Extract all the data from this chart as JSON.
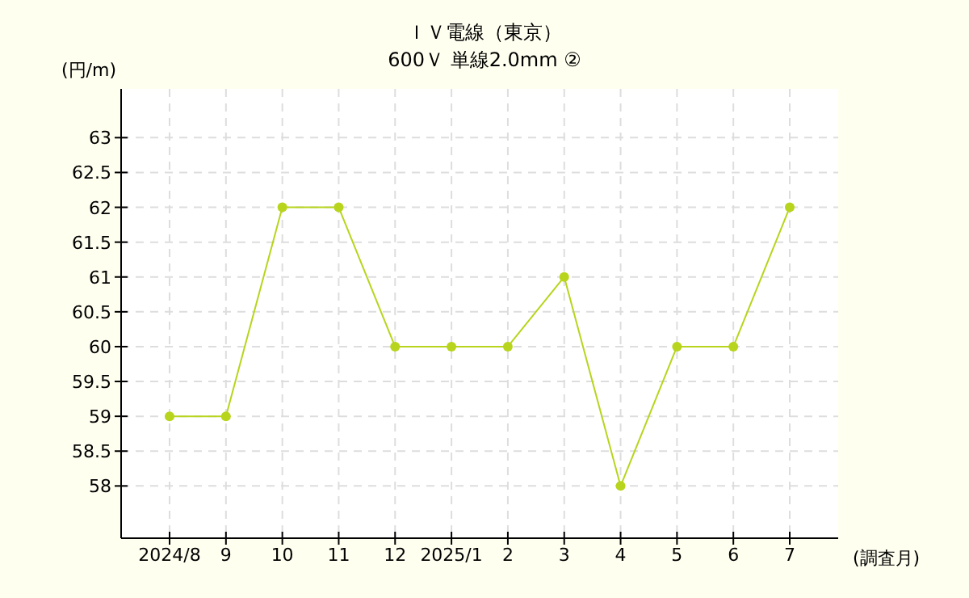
{
  "chart_data": {
    "type": "line",
    "title": "ＩＶ電線（東京）",
    "subtitle": "600Ｖ 単線2.0mm ②",
    "ylabel": "(円/m)",
    "xlabel": "(調査月)",
    "categories": [
      "2024/8",
      "9",
      "10",
      "11",
      "12",
      "2025/1",
      "2",
      "3",
      "4",
      "5",
      "6",
      "7"
    ],
    "series": [
      {
        "color": "#b8d41c",
        "values": [
          59,
          59,
          62,
          62,
          60,
          60,
          60,
          61,
          58,
          60,
          60,
          62
        ]
      }
    ],
    "ylim": [
      57.25,
      63.7
    ],
    "yticks": [
      58,
      58.5,
      59,
      59.5,
      60,
      60.5,
      61,
      61.5,
      62,
      62.5,
      63
    ],
    "grid": true,
    "marker": "circle",
    "line_style": "solid"
  }
}
